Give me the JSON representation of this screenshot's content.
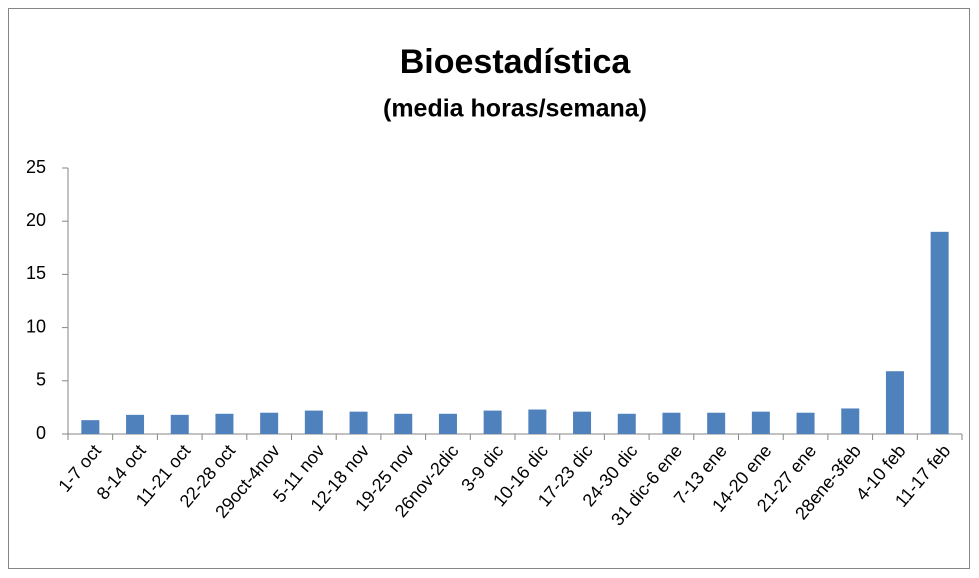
{
  "chart_data": {
    "type": "bar",
    "title": "Bioestadística",
    "subtitle": "(media horas/semana)",
    "categories": [
      "1-7 oct",
      "8-14 oct",
      "11-21 oct",
      "22-28 oct",
      "29oct-4nov",
      "5-11 nov",
      "12-18 nov",
      "19-25 nov",
      "26nov-2dic",
      "3-9 dic",
      "10-16 dic",
      "17-23 dic",
      "24-30 dic",
      "31 dic-6 ene",
      "7-13 ene",
      "14-20 ene",
      "21-27 ene",
      "28ene-3feb",
      "4-10 feb",
      "11-17 feb"
    ],
    "values": [
      1.3,
      1.8,
      1.8,
      1.9,
      2.0,
      2.2,
      2.1,
      1.9,
      1.9,
      2.2,
      2.3,
      2.1,
      1.9,
      2.0,
      2.0,
      2.1,
      2.0,
      2.4,
      5.9,
      19.0
    ],
    "color": "#4f81bd",
    "ylim": [
      0,
      25
    ],
    "yticks": [
      0,
      5,
      10,
      15,
      20,
      25
    ],
    "grid": false
  }
}
